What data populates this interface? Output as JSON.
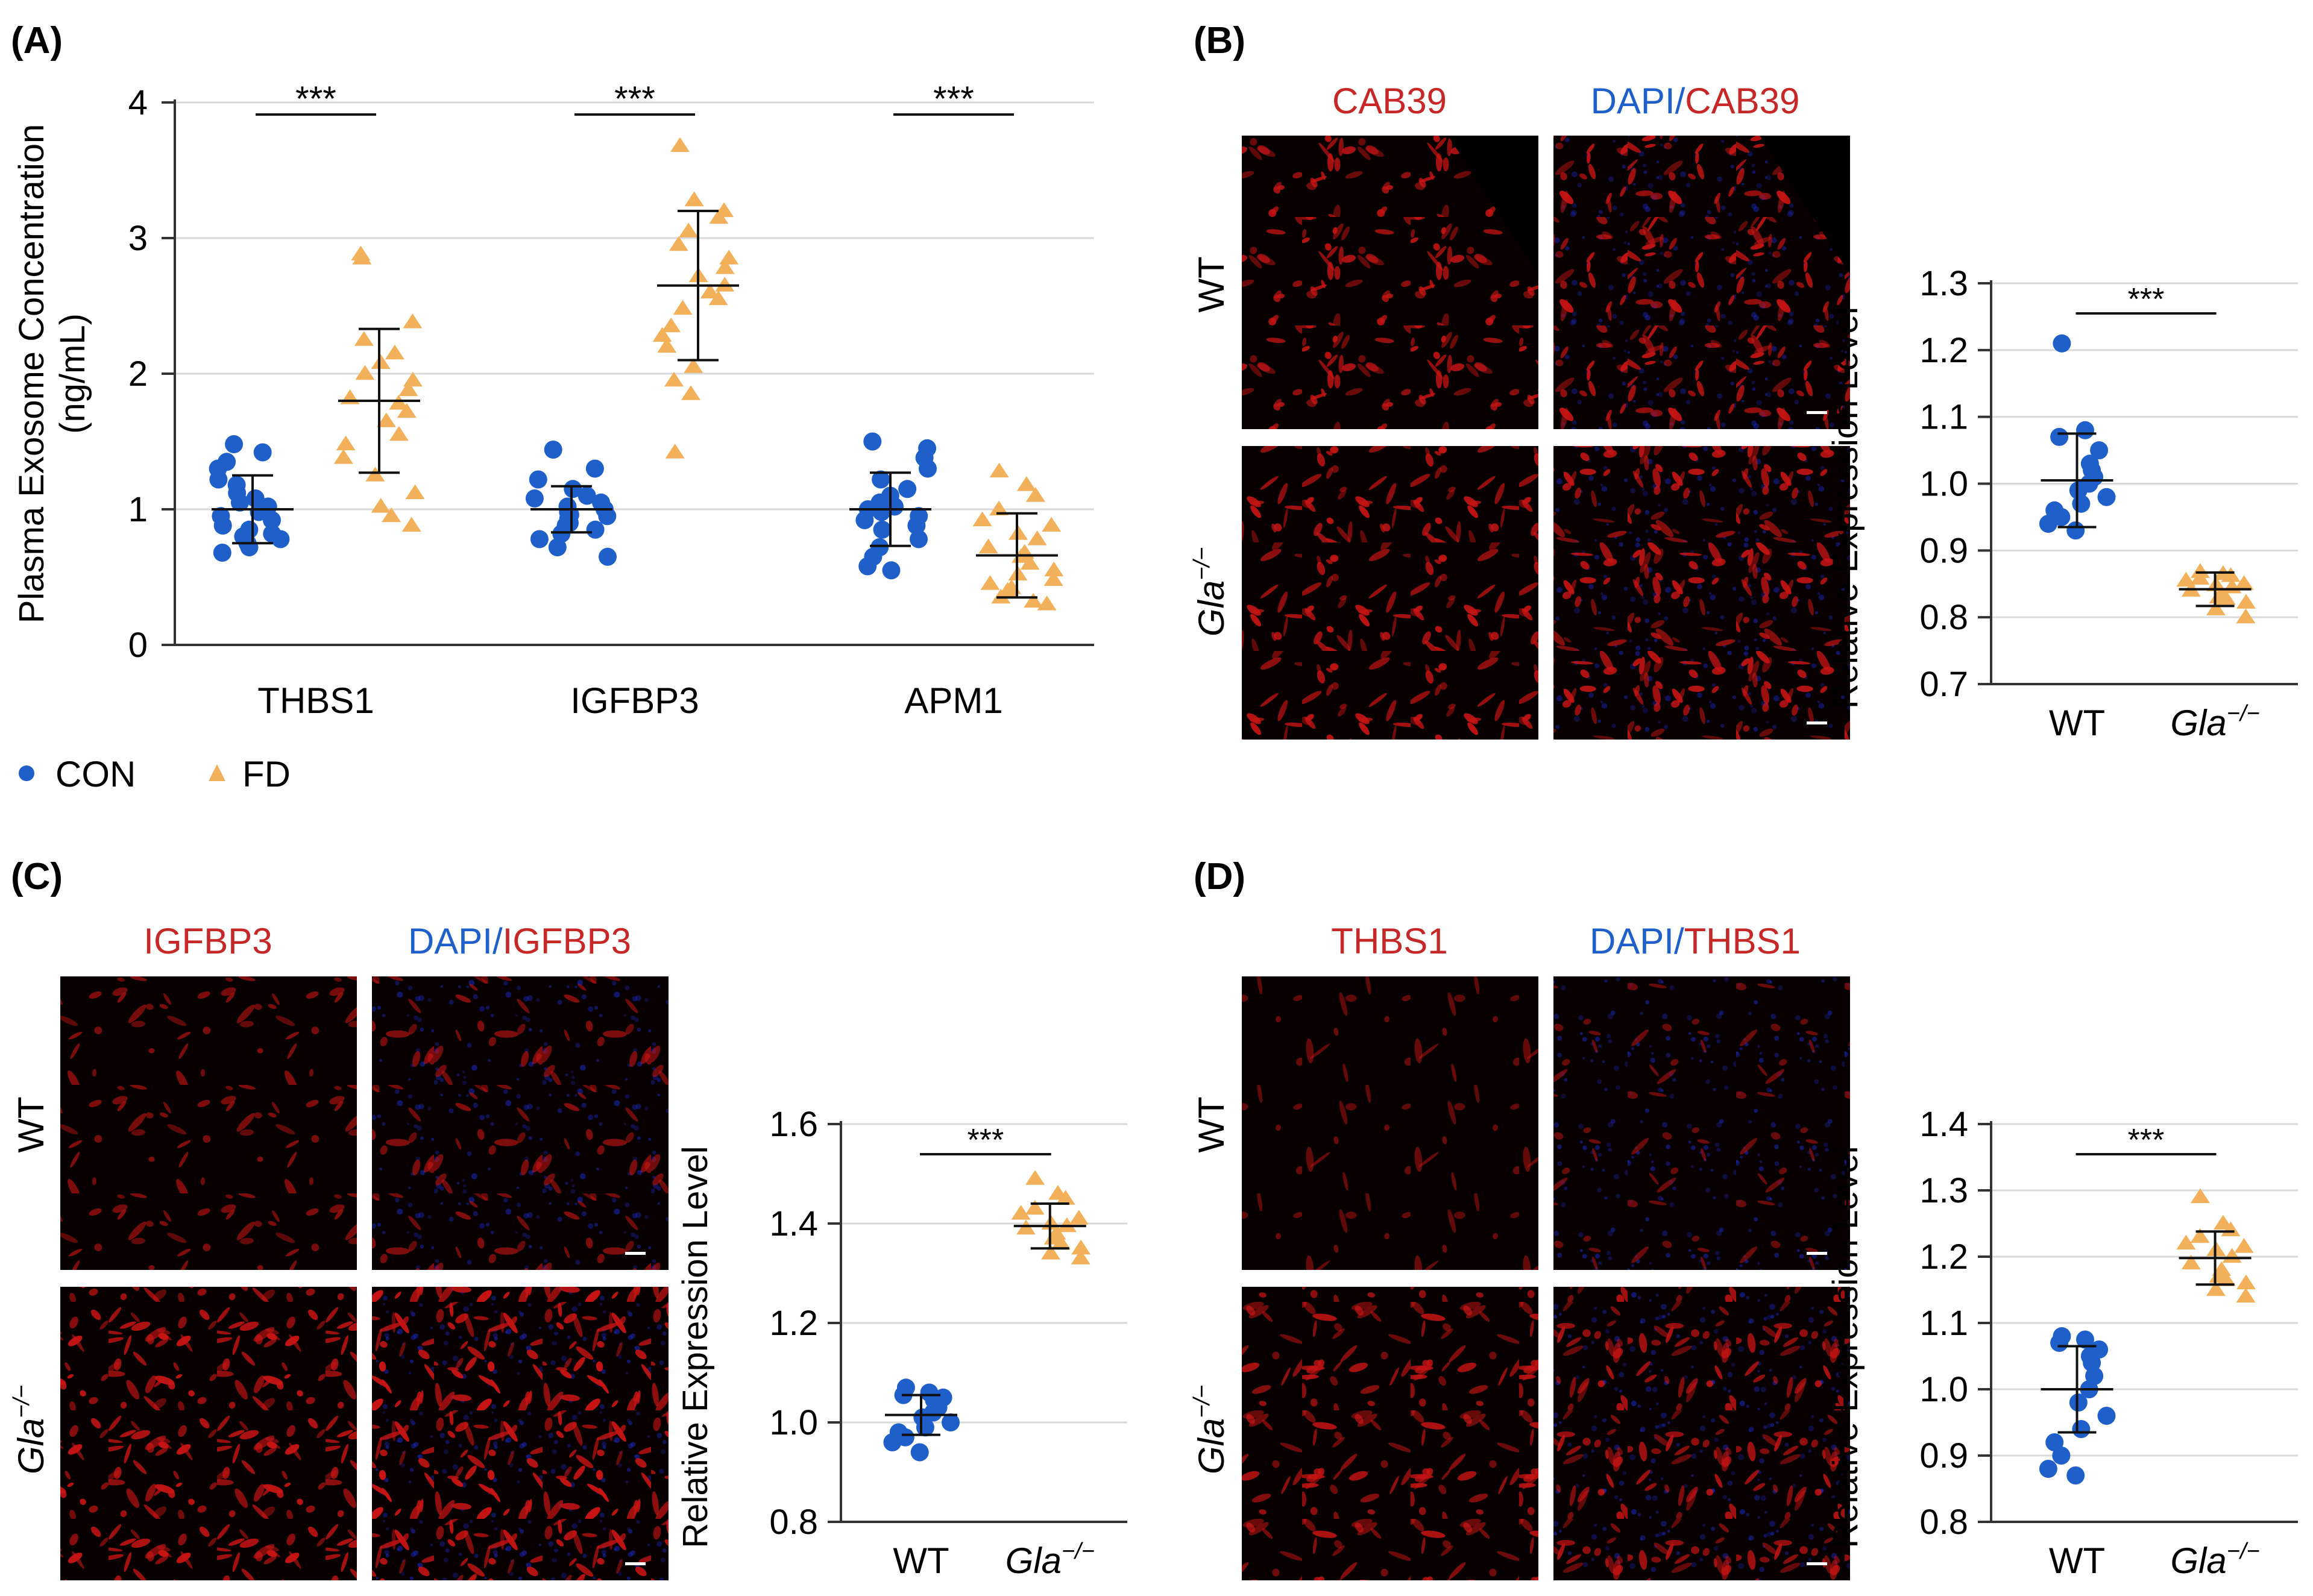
{
  "colors": {
    "con": "#1f5fc9",
    "fd": "#f2b05a",
    "red_text": "#c62828",
    "blue_text": "#1f5fc9",
    "axis": "#333333",
    "grid": "#d9d9d9",
    "micro_bg": "#080000",
    "micro_red": "#c81414",
    "micro_blue": "#1a2ac8"
  },
  "panels": {
    "A": {
      "label": "(A)",
      "legend": [
        {
          "name": "CON",
          "marker": "circle"
        },
        {
          "name": "FD",
          "marker": "triangle"
        }
      ]
    },
    "B": {
      "label": "(B)",
      "col1": "CAB39",
      "col2_a": "DAPI",
      "col2_sep": "/",
      "col2_b": "CAB39",
      "row1": "WT",
      "row2_base": "Gla",
      "row2_sup": "−/−",
      "micro_style": [
        "red",
        "redblue",
        "red",
        "redblue"
      ],
      "micro_density": [
        0.9,
        0.9,
        0.85,
        0.85
      ]
    },
    "C": {
      "label": "(C)",
      "col1": "IGFBP3",
      "col2_a": "DAPI",
      "col2_sep": "/",
      "col2_b": "IGFBP3",
      "row1": "WT",
      "row2_base": "Gla",
      "row2_sup": "−/−",
      "micro_style": [
        "red",
        "redblue",
        "red",
        "redblue"
      ],
      "micro_density": [
        0.35,
        0.35,
        1.0,
        1.0
      ]
    },
    "D": {
      "label": "(D)",
      "col1": "THBS1",
      "col2_a": "DAPI",
      "col2_sep": "/",
      "col2_b": "THBS1",
      "row1": "WT",
      "row2_base": "Gla",
      "row2_sup": "−/−",
      "micro_style": [
        "red",
        "redblue",
        "red",
        "redblue"
      ],
      "micro_density": [
        0.12,
        0.12,
        0.75,
        0.75
      ]
    }
  },
  "chart_data": [
    {
      "id": "A",
      "type": "scatter",
      "title": "",
      "xlabel": "",
      "ylabel": "Plasma Exosome Concentration",
      "ylabel_line2": "(ng/mL)",
      "ylim": [
        0,
        4
      ],
      "yticks": [
        0,
        1,
        2,
        3,
        4
      ],
      "grid": true,
      "categories": [
        "THBS1",
        "IGFBP3",
        "APM1"
      ],
      "significance": [
        "***",
        "***",
        "***"
      ],
      "series": [
        {
          "name": "CON",
          "marker": "circle",
          "mean": [
            1.0,
            1.0,
            1.0
          ],
          "sd": [
            0.25,
            0.17,
            0.27
          ],
          "values": [
            [
              1.48,
              1.42,
              1.35,
              1.3,
              1.22,
              1.18,
              1.12,
              1.08,
              1.05,
              1.02,
              0.98,
              0.95,
              0.92,
              0.88,
              0.85,
              0.82,
              0.8,
              0.78,
              0.75,
              0.72,
              0.68
            ],
            [
              1.44,
              1.3,
              1.22,
              1.15,
              1.1,
              1.08,
              1.05,
              1.02,
              1.0,
              0.98,
              0.96,
              0.95,
              0.93,
              0.9,
              0.88,
              0.85,
              0.82,
              0.78,
              0.72,
              0.65
            ],
            [
              1.5,
              1.45,
              1.38,
              1.3,
              1.22,
              1.15,
              1.1,
              1.05,
              1.02,
              1.0,
              0.98,
              0.95,
              0.92,
              0.88,
              0.85,
              0.78,
              0.72,
              0.65,
              0.58,
              0.55
            ]
          ]
        },
        {
          "name": "FD",
          "marker": "triangle",
          "mean": [
            1.8,
            2.65,
            0.66
          ],
          "sd": [
            0.53,
            0.55,
            0.31
          ],
          "values": [
            [
              2.88,
              2.85,
              2.38,
              2.25,
              2.15,
              2.08,
              2.0,
              1.95,
              1.88,
              1.82,
              1.78,
              1.72,
              1.65,
              1.55,
              1.48,
              1.38,
              1.25,
              1.12,
              1.02,
              0.95,
              0.88
            ],
            [
              3.68,
              3.28,
              3.2,
              3.15,
              3.05,
              2.95,
              2.85,
              2.78,
              2.72,
              2.65,
              2.6,
              2.55,
              2.48,
              2.35,
              2.28,
              2.2,
              2.05,
              1.95,
              1.85,
              1.42
            ],
            [
              1.28,
              1.18,
              1.1,
              1.0,
              0.92,
              0.88,
              0.82,
              0.78,
              0.72,
              0.68,
              0.65,
              0.6,
              0.55,
              0.52,
              0.48,
              0.45,
              0.42,
              0.4,
              0.35,
              0.32,
              0.3
            ]
          ]
        }
      ]
    },
    {
      "id": "B",
      "type": "scatter",
      "title": "",
      "xlabel": "",
      "ylabel": "Relative Expression Level",
      "ylim": [
        0.7,
        1.3
      ],
      "yticks": [
        0.7,
        0.8,
        0.9,
        1.0,
        1.1,
        1.2,
        1.3
      ],
      "yticklabels": [
        "0.7",
        "0.8",
        "0.9",
        "1.0",
        "1.1",
        "1.2",
        "1.3"
      ],
      "grid": true,
      "significance": "***",
      "categories": [
        {
          "base": "WT",
          "sup": "",
          "italic": false
        },
        {
          "base": "Gla",
          "sup": "−/−",
          "italic": true
        }
      ],
      "series": [
        {
          "name": "WT",
          "marker": "circle",
          "mean": 1.005,
          "sd": 0.07,
          "values": [
            1.21,
            1.08,
            1.07,
            1.05,
            1.03,
            1.02,
            1.01,
            1.0,
            0.99,
            0.98,
            0.97,
            0.96,
            0.95,
            0.94,
            0.93
          ]
        },
        {
          "name": "Gla−/−",
          "marker": "triangle",
          "mean": 0.842,
          "sd": 0.025,
          "values": [
            0.868,
            0.865,
            0.862,
            0.858,
            0.855,
            0.85,
            0.848,
            0.845,
            0.84,
            0.835,
            0.83,
            0.828,
            0.822,
            0.812,
            0.8
          ]
        }
      ]
    },
    {
      "id": "C",
      "type": "scatter",
      "title": "",
      "xlabel": "",
      "ylabel": "Relative Expression Level",
      "ylim": [
        0.8,
        1.6
      ],
      "yticks": [
        0.8,
        1.0,
        1.2,
        1.4,
        1.6
      ],
      "yticklabels": [
        "0.8",
        "1.0",
        "1.2",
        "1.4",
        "1.6"
      ],
      "grid": true,
      "significance": "***",
      "categories": [
        {
          "base": "WT",
          "sup": "",
          "italic": false
        },
        {
          "base": "Gla",
          "sup": "−/−",
          "italic": true
        }
      ],
      "series": [
        {
          "name": "WT",
          "marker": "circle",
          "mean": 1.015,
          "sd": 0.04,
          "values": [
            1.07,
            1.06,
            1.055,
            1.05,
            1.045,
            1.04,
            1.03,
            1.02,
            1.01,
            1.0,
            0.99,
            0.98,
            0.97,
            0.96,
            0.94
          ]
        },
        {
          "name": "Gla−/−",
          "marker": "triangle",
          "mean": 1.395,
          "sd": 0.045,
          "values": [
            1.49,
            1.46,
            1.45,
            1.43,
            1.42,
            1.41,
            1.4,
            1.395,
            1.39,
            1.38,
            1.37,
            1.36,
            1.35,
            1.34,
            1.33
          ]
        }
      ]
    },
    {
      "id": "D",
      "type": "scatter",
      "title": "",
      "xlabel": "",
      "ylabel": "Relative Expression Level",
      "ylim": [
        0.8,
        1.4
      ],
      "yticks": [
        0.8,
        0.9,
        1.0,
        1.1,
        1.2,
        1.3,
        1.4
      ],
      "yticklabels": [
        "0.8",
        "0.9",
        "1.0",
        "1.1",
        "1.2",
        "1.3",
        "1.4"
      ],
      "grid": true,
      "significance": "***",
      "categories": [
        {
          "base": "WT",
          "sup": "",
          "italic": false
        },
        {
          "base": "Gla",
          "sup": "−/−",
          "italic": true
        }
      ],
      "series": [
        {
          "name": "WT",
          "marker": "circle",
          "mean": 1.0,
          "sd": 0.065,
          "values": [
            1.08,
            1.075,
            1.07,
            1.06,
            1.05,
            1.04,
            1.02,
            1.0,
            0.98,
            0.96,
            0.94,
            0.92,
            0.9,
            0.88,
            0.87
          ]
        },
        {
          "name": "Gla−/−",
          "marker": "triangle",
          "mean": 1.198,
          "sd": 0.04,
          "values": [
            1.29,
            1.25,
            1.24,
            1.23,
            1.22,
            1.215,
            1.21,
            1.2,
            1.19,
            1.18,
            1.17,
            1.165,
            1.16,
            1.15,
            1.14
          ]
        }
      ]
    }
  ]
}
